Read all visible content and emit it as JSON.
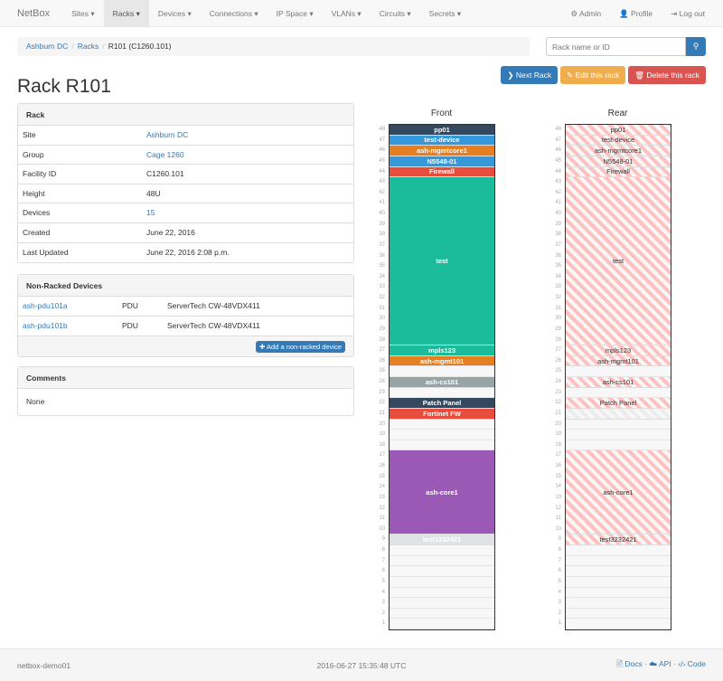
{
  "nav": {
    "brand": "NetBox",
    "items": [
      "Sites ▾",
      "Racks ▾",
      "Devices ▾",
      "Connections ▾",
      "IP Space ▾",
      "VLANs ▾",
      "Circuits ▾",
      "Secrets ▾"
    ],
    "active": 1,
    "admin": "⚙ Admin",
    "profile": "👤 Profile",
    "logout": "⇥ Log out"
  },
  "breadcrumb": [
    "Ashburn DC",
    "Racks",
    "R101 (C1260.101)"
  ],
  "search": {
    "placeholder": "Rack name or ID",
    "icon": "search-icon"
  },
  "buttons": {
    "next": "❯ Next Rack",
    "edit": "✎ Edit this rack",
    "delete": "🗑 Delete this rack"
  },
  "colors": {
    "next": "#337ab7",
    "edit": "#f0ad4e",
    "delete": "#d9534f"
  },
  "title": "Rack R101",
  "rack_panel": {
    "heading": "Rack",
    "rows": [
      {
        "k": "Site",
        "v": "Ashburn DC",
        "link": true
      },
      {
        "k": "Group",
        "v": "Cage 1260",
        "link": true
      },
      {
        "k": "Facility ID",
        "v": "C1260.101"
      },
      {
        "k": "Height",
        "v": "48U"
      },
      {
        "k": "Devices",
        "v": "15",
        "link": true
      },
      {
        "k": "Created",
        "v": "June 22, 2016"
      },
      {
        "k": "Last Updated",
        "v": "June 22, 2016 2:08 p.m."
      }
    ]
  },
  "nonracked": {
    "heading": "Non-Racked Devices",
    "rows": [
      {
        "name": "ash-pdu101a",
        "role": "PDU",
        "type": "ServerTech CW-48VDX411"
      },
      {
        "name": "ash-pdu101b",
        "role": "PDU",
        "type": "ServerTech CW-48VDX411"
      }
    ],
    "add": "✚ Add a non-racked device"
  },
  "comments": {
    "heading": "Comments",
    "text": "None"
  },
  "rack": {
    "units": 48,
    "front_label": "Front",
    "rear_label": "Rear",
    "front": [
      {
        "name": "pp01",
        "top": 48,
        "height": 1,
        "color": "#34495e"
      },
      {
        "name": "test-device",
        "top": 47,
        "height": 1,
        "color": "#3498db"
      },
      {
        "name": "ash-mgmtcore1",
        "top": 46,
        "height": 1,
        "color": "#e67e22"
      },
      {
        "name": "N5548-01",
        "top": 45,
        "height": 1,
        "color": "#3498db"
      },
      {
        "name": "Firewall",
        "top": 44,
        "height": 1,
        "color": "#e74c3c"
      },
      {
        "name": "test",
        "top": 43,
        "height": 16,
        "color": "#1abc9c"
      },
      {
        "name": "mpls123",
        "top": 27,
        "height": 1,
        "color": "#1abc9c"
      },
      {
        "name": "ash-mgmt101",
        "top": 26,
        "height": 1,
        "color": "#e67e22"
      },
      {
        "name": "ash-cs101",
        "top": 24,
        "height": 1,
        "color": "#95a5a6"
      },
      {
        "name": "Patch Panel",
        "top": 22,
        "height": 1,
        "color": "#34495e"
      },
      {
        "name": "Fortinet FW",
        "top": 21,
        "height": 1,
        "color": "#e74c3c"
      },
      {
        "name": "ash-core1",
        "top": 17,
        "height": 8,
        "color": "#9b59b6"
      },
      {
        "name": "test3232421",
        "top": 9,
        "height": 1,
        "color": "#dfe3e5"
      }
    ],
    "rear": [
      {
        "name": "pp01",
        "top": 48,
        "height": 1
      },
      {
        "name": "test-device",
        "top": 47,
        "height": 1
      },
      {
        "name": "ash-mgmtcore1",
        "top": 46,
        "height": 1
      },
      {
        "name": "N5548-01",
        "top": 45,
        "height": 1
      },
      {
        "name": "Firewall",
        "top": 44,
        "height": 1
      },
      {
        "name": "test",
        "top": 43,
        "height": 16
      },
      {
        "name": "mpls123",
        "top": 27,
        "height": 1
      },
      {
        "name": "ash-mgmt101",
        "top": 26,
        "height": 1
      },
      {
        "name": "ash-cs101",
        "top": 24,
        "height": 1
      },
      {
        "name": "Patch Panel",
        "top": 22,
        "height": 1
      },
      {
        "name": "",
        "top": 21,
        "height": 1,
        "reserved": true
      },
      {
        "name": "ash-core1",
        "top": 17,
        "height": 8
      },
      {
        "name": "test3232421",
        "top": 9,
        "height": 1
      }
    ]
  },
  "footer": {
    "host": "netbox-demo01",
    "time": "2016-06-27 15:35:48 UTC",
    "docs": "🖹 Docs",
    "api": "☁ API",
    "code": "‹/› Code",
    "sep": " · "
  }
}
